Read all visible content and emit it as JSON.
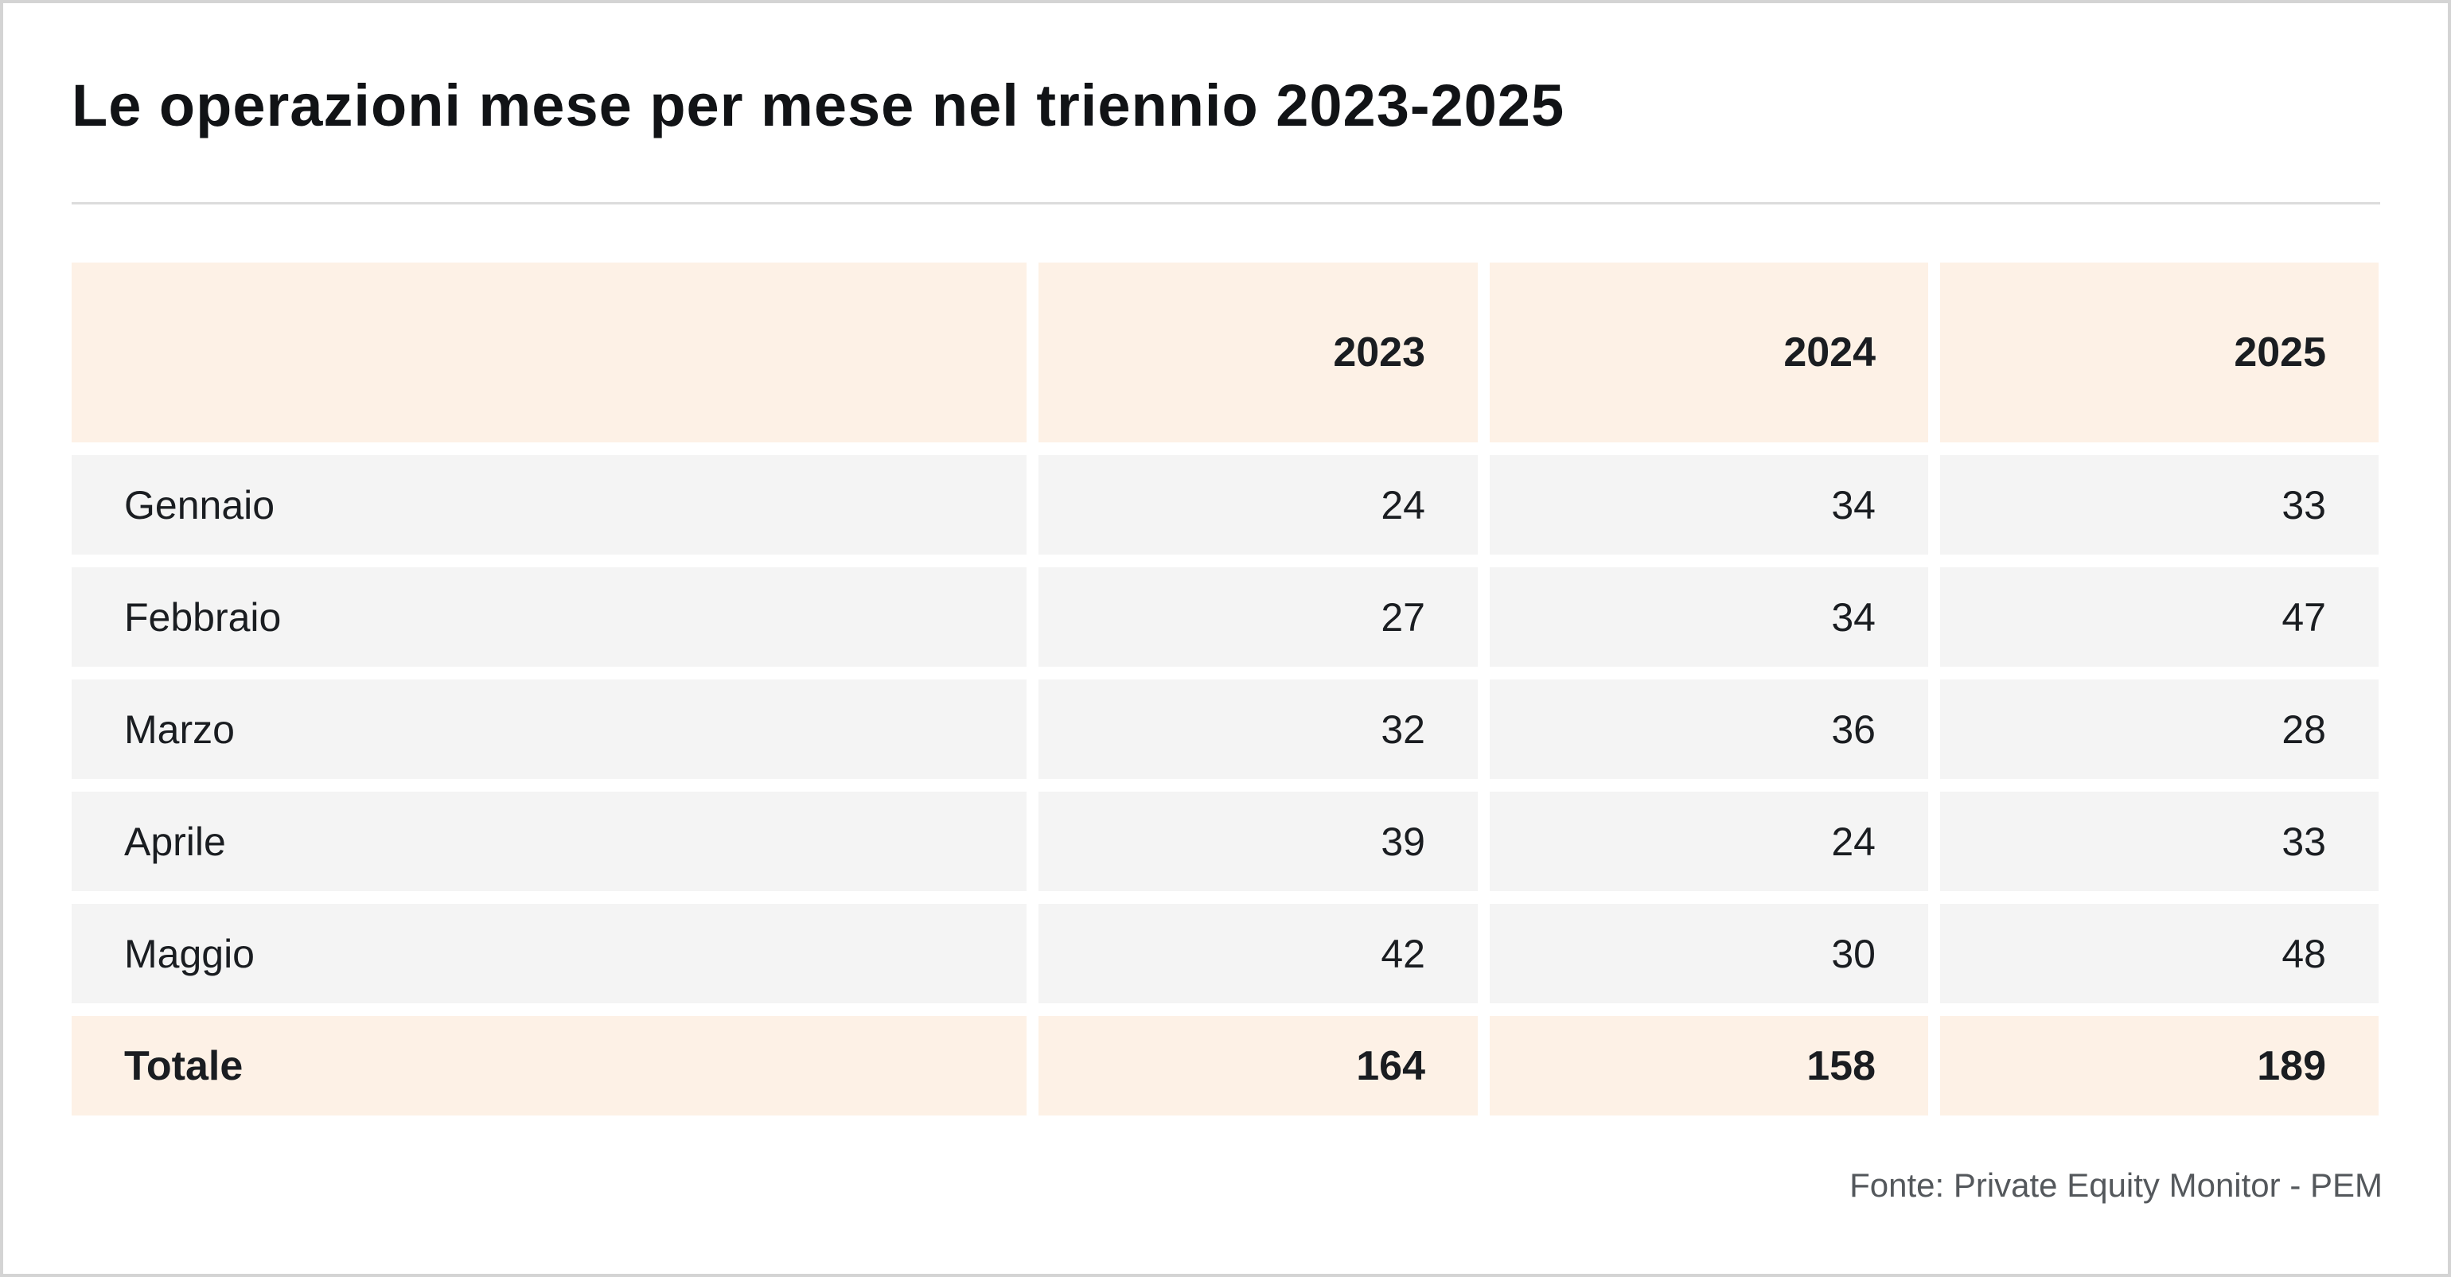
{
  "title": "Le operazioni mese per mese nel triennio 2023-2025",
  "source": "Fonte: Private Equity Monitor - PEM",
  "colors": {
    "header_band": "#fdf1e6",
    "row_band": "#f4f4f4",
    "text": "#1a1d21",
    "source_text": "#54585c",
    "divider": "#dcdcdc",
    "outer_border": "#d4d4d4"
  },
  "chart_data": {
    "type": "table",
    "title": "Le operazioni mese per mese nel triennio 2023-2025",
    "columns": [
      "",
      "2023",
      "2024",
      "2025"
    ],
    "rows": [
      {
        "label": "Gennaio",
        "values": [
          24,
          34,
          33
        ]
      },
      {
        "label": "Febbraio",
        "values": [
          27,
          34,
          47
        ]
      },
      {
        "label": "Marzo",
        "values": [
          32,
          36,
          28
        ]
      },
      {
        "label": "Aprile",
        "values": [
          39,
          24,
          33
        ]
      },
      {
        "label": "Maggio",
        "values": [
          42,
          30,
          48
        ]
      }
    ],
    "total": {
      "label": "Totale",
      "values": [
        164,
        158,
        189
      ]
    },
    "source": "Fonte: Private Equity Monitor - PEM"
  }
}
